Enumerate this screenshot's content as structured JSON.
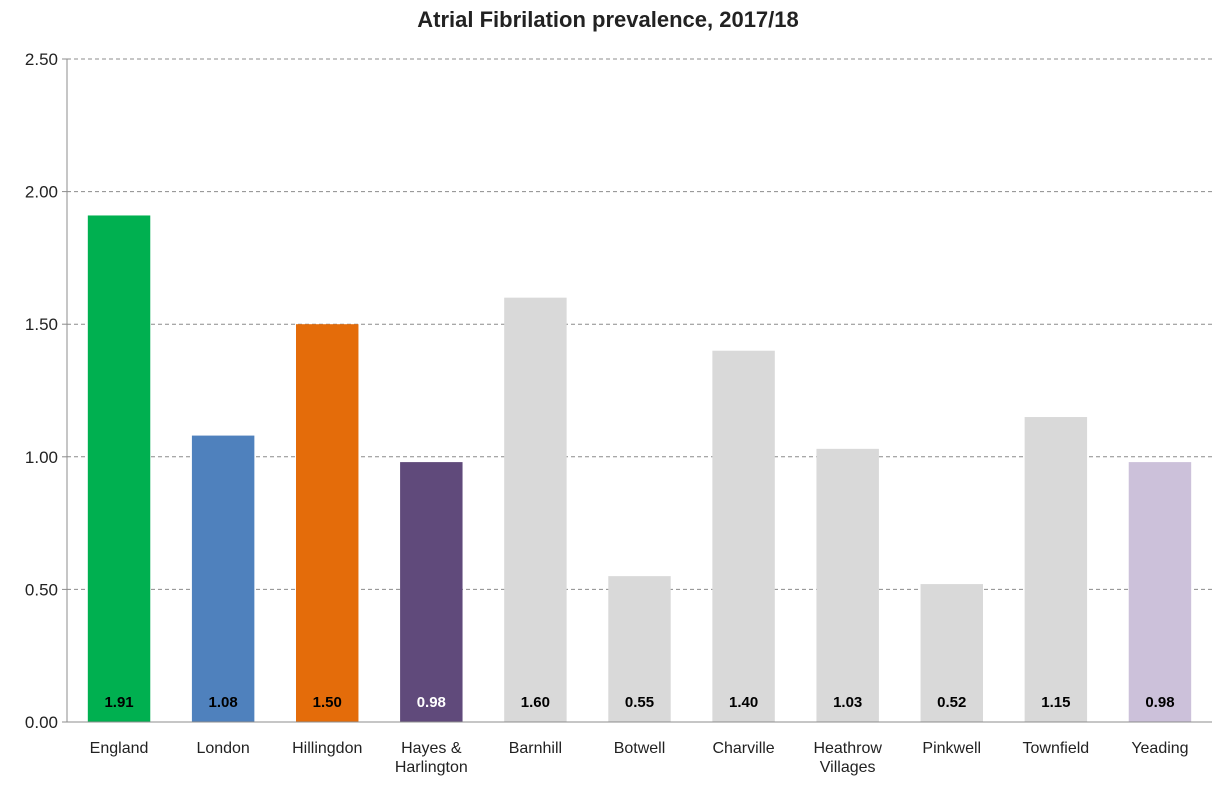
{
  "chart_data": {
    "type": "bar",
    "title": "Atrial Fibrilation prevalence, 2017/18",
    "xlabel": "",
    "ylabel": "",
    "ylim": [
      0,
      2.5
    ],
    "yticks": [
      "0.00",
      "0.50",
      "1.00",
      "1.50",
      "2.00",
      "2.50"
    ],
    "ytick_values": [
      0,
      0.5,
      1.0,
      1.5,
      2.0,
      2.5
    ],
    "grid": true,
    "legend": "none",
    "categories": [
      [
        "England"
      ],
      [
        "London"
      ],
      [
        "Hillingdon"
      ],
      [
        "Hayes &",
        "Harlington"
      ],
      [
        "Barnhill"
      ],
      [
        "Botwell"
      ],
      [
        "Charville"
      ],
      [
        "Heathrow",
        "Villages"
      ],
      [
        "Pinkwell"
      ],
      [
        "Townfield"
      ],
      [
        "Yeading"
      ]
    ],
    "values": [
      1.91,
      1.08,
      1.5,
      0.98,
      1.6,
      0.55,
      1.4,
      1.03,
      0.52,
      1.15,
      0.98
    ],
    "value_labels": [
      "1.91",
      "1.08",
      "1.50",
      "0.98",
      "1.60",
      "0.55",
      "1.40",
      "1.03",
      "0.52",
      "1.15",
      "0.98"
    ],
    "colors": [
      "#00b050",
      "#4f81bd",
      "#e46c0a",
      "#604a7b",
      "#d9d9d9",
      "#d9d9d9",
      "#d9d9d9",
      "#d9d9d9",
      "#d9d9d9",
      "#d9d9d9",
      "#ccc1da"
    ],
    "label_colors": [
      "#000000",
      "#000000",
      "#000000",
      "#ffffff",
      "#000000",
      "#000000",
      "#000000",
      "#000000",
      "#000000",
      "#000000",
      "#000000"
    ]
  }
}
